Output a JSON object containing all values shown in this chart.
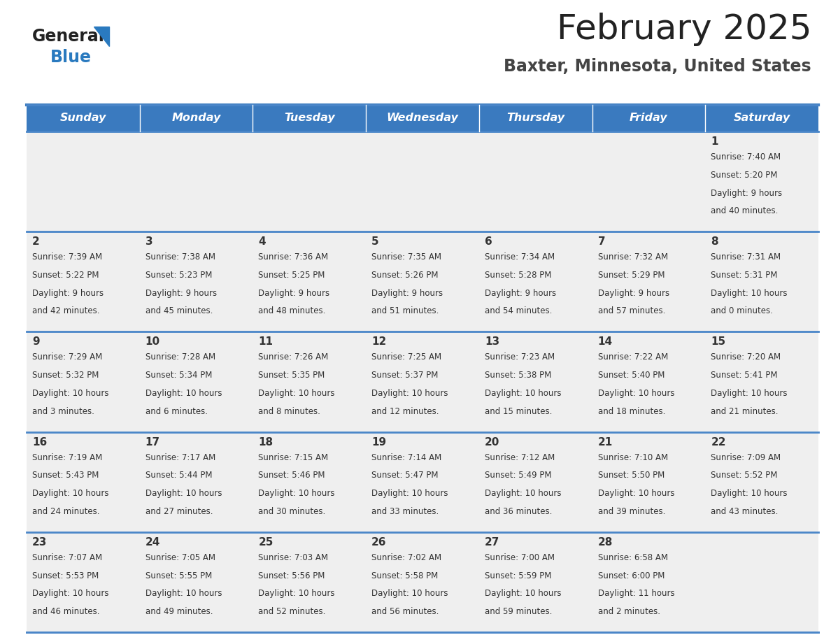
{
  "title": "February 2025",
  "subtitle": "Baxter, Minnesota, United States",
  "days_of_week": [
    "Sunday",
    "Monday",
    "Tuesday",
    "Wednesday",
    "Thursday",
    "Friday",
    "Saturday"
  ],
  "header_bg": "#3a7abf",
  "header_text": "#ffffff",
  "cell_bg": "#efefef",
  "cell_bg_white": "#ffffff",
  "row_sep_color": "#4a86c8",
  "day_number_color": "#333333",
  "cell_text_color": "#333333",
  "title_color": "#222222",
  "subtitle_color": "#444444",
  "logo_general_color": "#222222",
  "logo_blue_color": "#2a7abf",
  "week_rows": [
    {
      "days": [
        null,
        null,
        null,
        null,
        null,
        null,
        1
      ],
      "data": [
        null,
        null,
        null,
        null,
        null,
        null,
        {
          "sunrise": "7:40 AM",
          "sunset": "5:20 PM",
          "daylight": "9 hours and 40 minutes."
        }
      ]
    },
    {
      "days": [
        2,
        3,
        4,
        5,
        6,
        7,
        8
      ],
      "data": [
        {
          "sunrise": "7:39 AM",
          "sunset": "5:22 PM",
          "daylight": "9 hours and 42 minutes."
        },
        {
          "sunrise": "7:38 AM",
          "sunset": "5:23 PM",
          "daylight": "9 hours and 45 minutes."
        },
        {
          "sunrise": "7:36 AM",
          "sunset": "5:25 PM",
          "daylight": "9 hours and 48 minutes."
        },
        {
          "sunrise": "7:35 AM",
          "sunset": "5:26 PM",
          "daylight": "9 hours and 51 minutes."
        },
        {
          "sunrise": "7:34 AM",
          "sunset": "5:28 PM",
          "daylight": "9 hours and 54 minutes."
        },
        {
          "sunrise": "7:32 AM",
          "sunset": "5:29 PM",
          "daylight": "9 hours and 57 minutes."
        },
        {
          "sunrise": "7:31 AM",
          "sunset": "5:31 PM",
          "daylight": "10 hours and 0 minutes."
        }
      ]
    },
    {
      "days": [
        9,
        10,
        11,
        12,
        13,
        14,
        15
      ],
      "data": [
        {
          "sunrise": "7:29 AM",
          "sunset": "5:32 PM",
          "daylight": "10 hours and 3 minutes."
        },
        {
          "sunrise": "7:28 AM",
          "sunset": "5:34 PM",
          "daylight": "10 hours and 6 minutes."
        },
        {
          "sunrise": "7:26 AM",
          "sunset": "5:35 PM",
          "daylight": "10 hours and 8 minutes."
        },
        {
          "sunrise": "7:25 AM",
          "sunset": "5:37 PM",
          "daylight": "10 hours and 12 minutes."
        },
        {
          "sunrise": "7:23 AM",
          "sunset": "5:38 PM",
          "daylight": "10 hours and 15 minutes."
        },
        {
          "sunrise": "7:22 AM",
          "sunset": "5:40 PM",
          "daylight": "10 hours and 18 minutes."
        },
        {
          "sunrise": "7:20 AM",
          "sunset": "5:41 PM",
          "daylight": "10 hours and 21 minutes."
        }
      ]
    },
    {
      "days": [
        16,
        17,
        18,
        19,
        20,
        21,
        22
      ],
      "data": [
        {
          "sunrise": "7:19 AM",
          "sunset": "5:43 PM",
          "daylight": "10 hours and 24 minutes."
        },
        {
          "sunrise": "7:17 AM",
          "sunset": "5:44 PM",
          "daylight": "10 hours and 27 minutes."
        },
        {
          "sunrise": "7:15 AM",
          "sunset": "5:46 PM",
          "daylight": "10 hours and 30 minutes."
        },
        {
          "sunrise": "7:14 AM",
          "sunset": "5:47 PM",
          "daylight": "10 hours and 33 minutes."
        },
        {
          "sunrise": "7:12 AM",
          "sunset": "5:49 PM",
          "daylight": "10 hours and 36 minutes."
        },
        {
          "sunrise": "7:10 AM",
          "sunset": "5:50 PM",
          "daylight": "10 hours and 39 minutes."
        },
        {
          "sunrise": "7:09 AM",
          "sunset": "5:52 PM",
          "daylight": "10 hours and 43 minutes."
        }
      ]
    },
    {
      "days": [
        23,
        24,
        25,
        26,
        27,
        28,
        null
      ],
      "data": [
        {
          "sunrise": "7:07 AM",
          "sunset": "5:53 PM",
          "daylight": "10 hours and 46 minutes."
        },
        {
          "sunrise": "7:05 AM",
          "sunset": "5:55 PM",
          "daylight": "10 hours and 49 minutes."
        },
        {
          "sunrise": "7:03 AM",
          "sunset": "5:56 PM",
          "daylight": "10 hours and 52 minutes."
        },
        {
          "sunrise": "7:02 AM",
          "sunset": "5:58 PM",
          "daylight": "10 hours and 56 minutes."
        },
        {
          "sunrise": "7:00 AM",
          "sunset": "5:59 PM",
          "daylight": "10 hours and 59 minutes."
        },
        {
          "sunrise": "6:58 AM",
          "sunset": "6:00 PM",
          "daylight": "11 hours and 2 minutes."
        },
        null
      ]
    }
  ]
}
